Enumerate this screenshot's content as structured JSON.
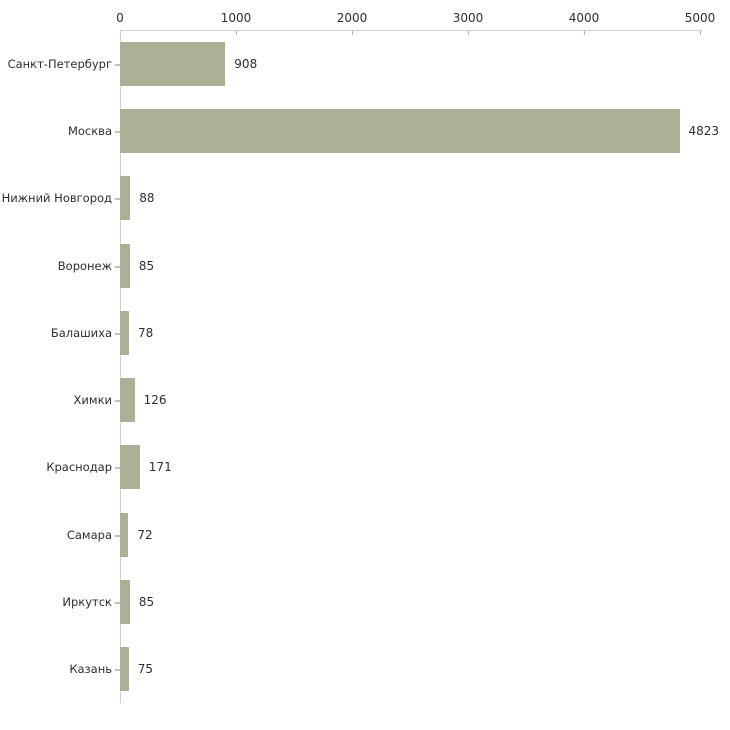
{
  "chart_data": {
    "type": "bar",
    "orientation": "horizontal",
    "title": "",
    "xlabel": "",
    "ylabel": "",
    "categories": [
      "Санкт-Петербург",
      "Москва",
      "Нижний Новгород",
      "Воронеж",
      "Балашиха",
      "Химки",
      "Краснодар",
      "Самара",
      "Иркутск",
      "Казань"
    ],
    "values": [
      908,
      4823,
      88,
      85,
      78,
      126,
      171,
      72,
      85,
      75
    ],
    "value_labels": [
      "908",
      "4823",
      "88",
      "85",
      "78",
      "126",
      "171",
      "72",
      "85",
      "75"
    ],
    "x_ticks": [
      0,
      1000,
      2000,
      3000,
      4000,
      5000
    ],
    "x_tick_labels": [
      "0",
      "1000",
      "2000",
      "3000",
      "4000",
      "5000"
    ],
    "xlim": [
      0,
      5000
    ],
    "axis_position": "top",
    "grid": false,
    "legend": false,
    "bar_color": "#abb096",
    "axis_line_color": "#cfcfc2",
    "text_color": "#2e2e2e"
  }
}
